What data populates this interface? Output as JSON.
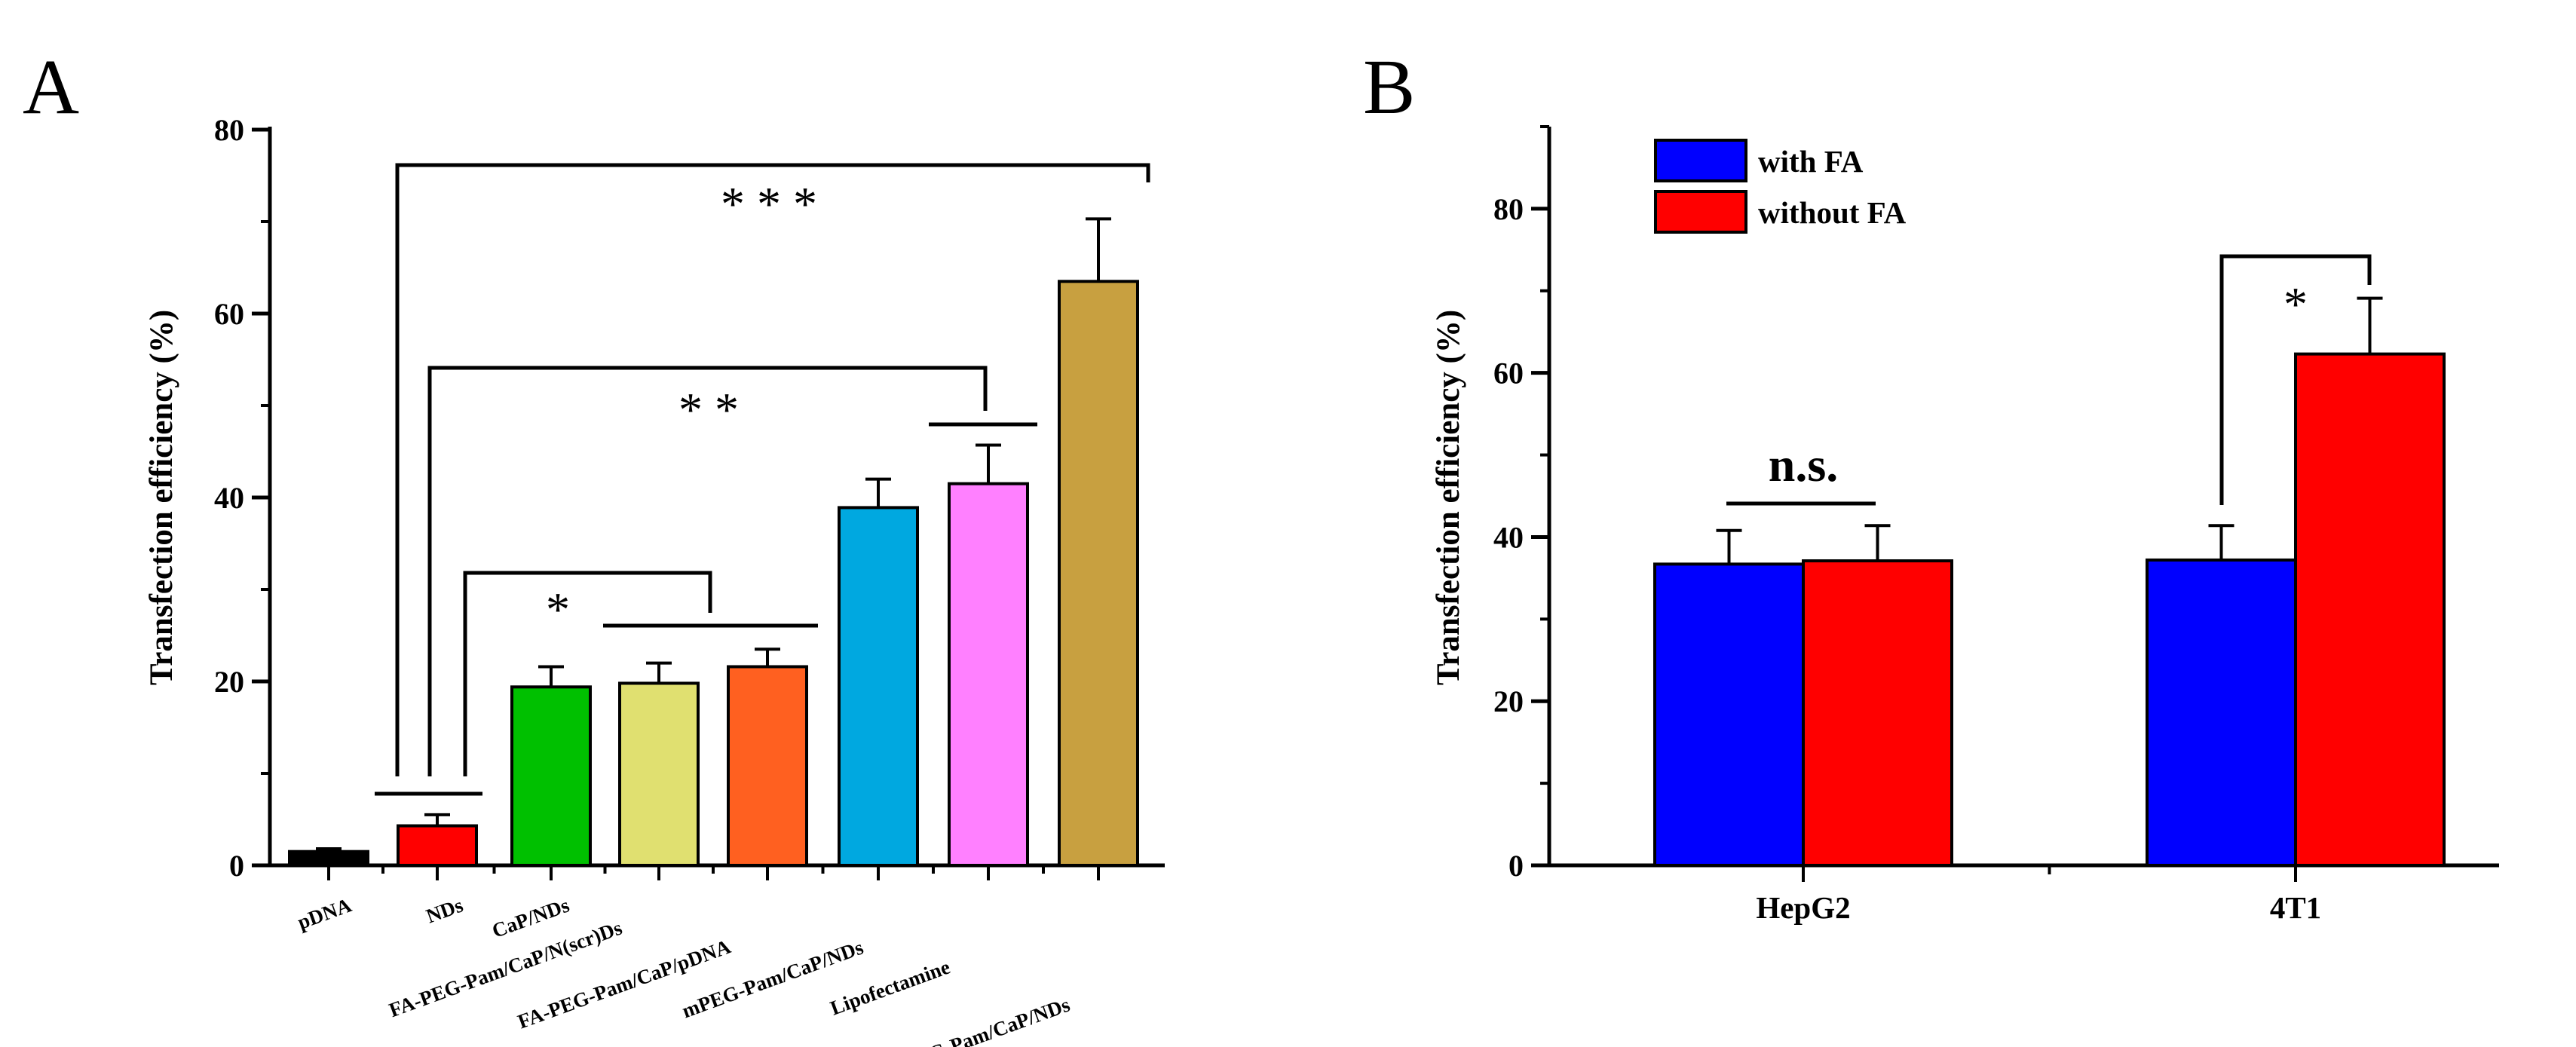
{
  "chart_data": [
    {
      "type": "bar",
      "panel_label": "A",
      "ylabel": "Transfection efficiency (%)",
      "ylim": [
        0,
        80
      ],
      "yticks": [
        0,
        20,
        40,
        60,
        80
      ],
      "categories": [
        "pDNA",
        "NDs",
        "CaP/NDs",
        "FA-PEG-Pam/CaP/N(scr)Ds",
        "FA-PEG-Pam/CaP/pDNA",
        "mPEG-Pam/CaP/NDs",
        "Lipofectamine",
        "FA-PEG-Pam/CaP/NDs"
      ],
      "values": [
        1.5,
        4.3,
        19.4,
        19.8,
        21.6,
        38.9,
        41.5,
        63.5
      ],
      "errors": [
        0.3,
        1.2,
        2.2,
        2.2,
        1.9,
        3.1,
        4.2,
        6.8
      ],
      "colors": [
        "#000000",
        "#ff0000",
        "#00c000",
        "#e0e070",
        "#ff6020",
        "#00a8e0",
        "#ff80ff",
        "#c8a040"
      ],
      "annotations": [
        "* * *",
        "* *",
        "*"
      ],
      "grid": false
    },
    {
      "type": "bar",
      "panel_label": "B",
      "ylabel": "Transfection efficiency (%)",
      "ylim": [
        0,
        90
      ],
      "yticks": [
        0,
        20,
        40,
        60,
        80
      ],
      "categories": [
        "HepG2",
        "4T1"
      ],
      "series": [
        {
          "name": "with FA",
          "values": [
            36.7,
            37.2
          ],
          "errors": [
            4.1,
            4.2
          ],
          "color": "#0000ff"
        },
        {
          "name": "without FA",
          "values": [
            37.1,
            62.3
          ],
          "errors": [
            4.3,
            6.8
          ],
          "color": "#ff0000"
        }
      ],
      "annotations": [
        "n.s.",
        "*"
      ],
      "legend_position": "top-left",
      "grid": false
    }
  ]
}
